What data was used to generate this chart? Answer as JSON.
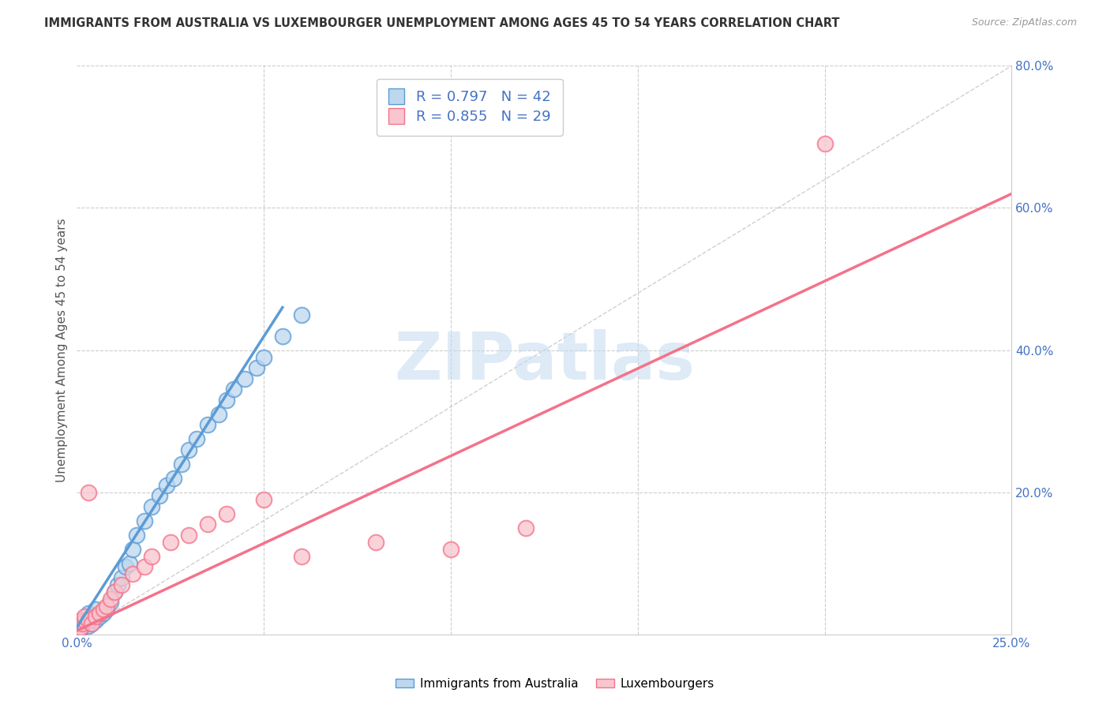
{
  "title": "IMMIGRANTS FROM AUSTRALIA VS LUXEMBOURGER UNEMPLOYMENT AMONG AGES 45 TO 54 YEARS CORRELATION CHART",
  "source": "Source: ZipAtlas.com",
  "ylabel": "Unemployment Among Ages 45 to 54 years",
  "xlim": [
    0,
    0.25
  ],
  "ylim": [
    0,
    0.8
  ],
  "blue_color": "#5b9bd5",
  "blue_fill": "#bdd7ee",
  "pink_color": "#f4728a",
  "pink_fill": "#f9c5ce",
  "legend_R1": "R = 0.797",
  "legend_N1": "N = 42",
  "legend_R2": "R = 0.855",
  "legend_N2": "N = 29",
  "watermark": "ZIPatlas",
  "watermark_color": "#c8ddf0",
  "legend_label_blue": "Immigrants from Australia",
  "legend_label_pink": "Luxembourgers",
  "blue_scatter_x": [
    0.0005,
    0.001,
    0.001,
    0.0015,
    0.002,
    0.002,
    0.0025,
    0.003,
    0.003,
    0.003,
    0.004,
    0.004,
    0.005,
    0.005,
    0.006,
    0.007,
    0.008,
    0.009,
    0.01,
    0.011,
    0.012,
    0.013,
    0.014,
    0.015,
    0.016,
    0.018,
    0.02,
    0.022,
    0.024,
    0.026,
    0.028,
    0.03,
    0.032,
    0.035,
    0.038,
    0.04,
    0.042,
    0.045,
    0.048,
    0.05,
    0.055,
    0.06
  ],
  "blue_scatter_y": [
    0.005,
    0.008,
    0.012,
    0.01,
    0.015,
    0.02,
    0.018,
    0.012,
    0.022,
    0.03,
    0.015,
    0.025,
    0.02,
    0.035,
    0.025,
    0.03,
    0.035,
    0.045,
    0.06,
    0.07,
    0.08,
    0.095,
    0.1,
    0.12,
    0.14,
    0.16,
    0.18,
    0.195,
    0.21,
    0.22,
    0.24,
    0.26,
    0.275,
    0.295,
    0.31,
    0.33,
    0.345,
    0.36,
    0.375,
    0.39,
    0.42,
    0.45
  ],
  "pink_scatter_x": [
    0.0005,
    0.001,
    0.001,
    0.0015,
    0.002,
    0.002,
    0.003,
    0.003,
    0.004,
    0.005,
    0.006,
    0.007,
    0.008,
    0.009,
    0.01,
    0.012,
    0.015,
    0.018,
    0.02,
    0.025,
    0.03,
    0.035,
    0.04,
    0.05,
    0.06,
    0.08,
    0.1,
    0.12,
    0.2
  ],
  "pink_scatter_y": [
    0.005,
    0.01,
    0.02,
    0.015,
    0.02,
    0.025,
    0.02,
    0.2,
    0.015,
    0.025,
    0.03,
    0.035,
    0.04,
    0.05,
    0.06,
    0.07,
    0.085,
    0.095,
    0.11,
    0.13,
    0.14,
    0.155,
    0.17,
    0.19,
    0.11,
    0.13,
    0.12,
    0.15,
    0.69
  ],
  "blue_line_x": [
    0.0,
    0.055
  ],
  "blue_line_y": [
    0.01,
    0.46
  ],
  "pink_line_x": [
    0.0,
    0.25
  ],
  "pink_line_y": [
    0.005,
    0.62
  ],
  "diag_line_x": [
    0.0,
    0.25
  ],
  "diag_line_y": [
    0.0,
    0.8
  ]
}
